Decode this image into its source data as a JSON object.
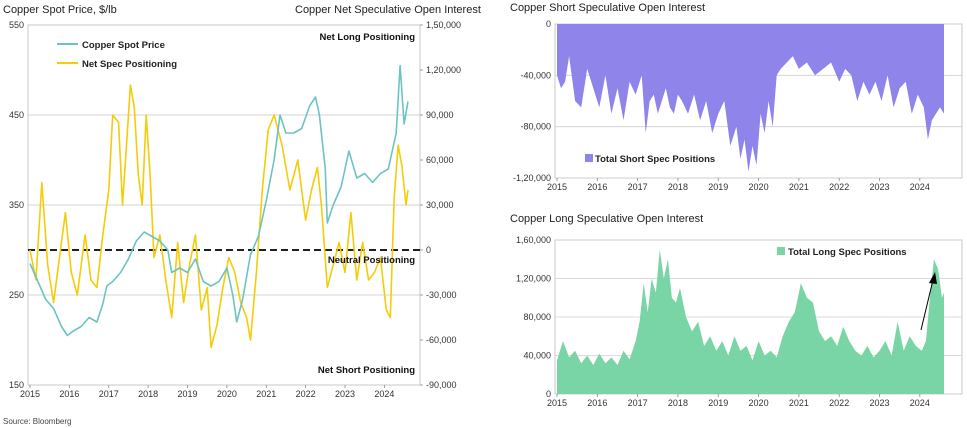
{
  "source": "Source: Bloomberg",
  "colors": {
    "copper": "#6cc4c2",
    "spec": "#f5cc0a",
    "short": "#8f84ea",
    "long": "#79d4a6"
  },
  "chart_data": [
    {
      "type": "line",
      "title_left": "Copper Spot Price, $/lb",
      "title_right": "Copper Net Speculative Open Interest",
      "xlabels": [
        "2015",
        "2016",
        "2017",
        "2018",
        "2019",
        "2020",
        "2021",
        "2022",
        "2023",
        "2024"
      ],
      "x_range": [
        2015,
        2024.6
      ],
      "y_left": {
        "ticks": [
          "550",
          "450",
          "350",
          "250",
          "150"
        ],
        "range": [
          150,
          550
        ]
      },
      "y_right": {
        "ticks": [
          "1,50,000",
          "1,20,000",
          "90,000",
          "60,000",
          "30,000",
          "0",
          "-30,000",
          "-60,000",
          "-90,000"
        ],
        "range": [
          -90000,
          150000
        ]
      },
      "grid": true,
      "legend": [
        "Copper Spot Price",
        "Net Spec Positioning"
      ],
      "annotations": {
        "long": "Net Long Positioning",
        "neutral": "Neutral Positioning",
        "short": "Net Short Positioning"
      },
      "series": [
        {
          "name": "Copper Spot Price",
          "axis": "left",
          "x": [
            2015,
            2015.2,
            2015.4,
            2015.6,
            2015.8,
            2015.95,
            2016.1,
            2016.3,
            2016.5,
            2016.7,
            2016.85,
            2016.95,
            2017.1,
            2017.3,
            2017.5,
            2017.7,
            2017.9,
            2018.1,
            2018.3,
            2018.5,
            2018.6,
            2018.8,
            2019.0,
            2019.2,
            2019.4,
            2019.6,
            2019.8,
            2020.0,
            2020.15,
            2020.25,
            2020.4,
            2020.6,
            2020.8,
            2021.0,
            2021.2,
            2021.35,
            2021.5,
            2021.7,
            2021.9,
            2022.1,
            2022.25,
            2022.35,
            2022.5,
            2022.55,
            2022.7,
            2022.9,
            2023.1,
            2023.3,
            2023.5,
            2023.7,
            2023.9,
            2024.1,
            2024.3,
            2024.4,
            2024.5,
            2024.6
          ],
          "y": [
            285,
            265,
            245,
            235,
            215,
            205,
            210,
            215,
            225,
            220,
            240,
            260,
            265,
            275,
            290,
            310,
            320,
            315,
            310,
            300,
            275,
            280,
            275,
            290,
            265,
            260,
            265,
            280,
            250,
            220,
            245,
            295,
            315,
            355,
            400,
            450,
            430,
            430,
            435,
            460,
            470,
            450,
            390,
            330,
            350,
            370,
            410,
            380,
            385,
            375,
            385,
            390,
            430,
            505,
            440,
            465
          ]
        },
        {
          "name": "Net Spec Positioning",
          "axis": "right",
          "x": [
            2015,
            2015.15,
            2015.3,
            2015.45,
            2015.6,
            2015.75,
            2015.9,
            2016.05,
            2016.2,
            2016.4,
            2016.55,
            2016.7,
            2016.85,
            2017.0,
            2017.1,
            2017.25,
            2017.35,
            2017.45,
            2017.55,
            2017.65,
            2017.75,
            2017.85,
            2017.95,
            2018.05,
            2018.15,
            2018.3,
            2018.45,
            2018.6,
            2018.75,
            2018.9,
            2019.05,
            2019.2,
            2019.35,
            2019.5,
            2019.6,
            2019.75,
            2019.9,
            2020.05,
            2020.2,
            2020.35,
            2020.5,
            2020.6,
            2020.75,
            2020.9,
            2021.05,
            2021.2,
            2021.4,
            2021.6,
            2021.8,
            2022.0,
            2022.15,
            2022.3,
            2022.4,
            2022.55,
            2022.7,
            2022.85,
            2023.0,
            2023.15,
            2023.3,
            2023.45,
            2023.6,
            2023.75,
            2023.9,
            2024.05,
            2024.15,
            2024.25,
            2024.35,
            2024.45,
            2024.55,
            2024.6
          ],
          "y": [
            0,
            -20000,
            45000,
            -10000,
            -35000,
            -5000,
            25000,
            -15000,
            -30000,
            10000,
            -20000,
            -25000,
            10000,
            40000,
            90000,
            85000,
            30000,
            70000,
            110000,
            95000,
            50000,
            30000,
            90000,
            50000,
            -5000,
            10000,
            -20000,
            -45000,
            5000,
            -35000,
            -10000,
            10000,
            -40000,
            -25000,
            -65000,
            -50000,
            -25000,
            -5000,
            -15000,
            -35000,
            -45000,
            -60000,
            -15000,
            40000,
            80000,
            90000,
            70000,
            40000,
            60000,
            20000,
            40000,
            55000,
            30000,
            -25000,
            -10000,
            5000,
            -15000,
            25000,
            -20000,
            5000,
            -20000,
            -15000,
            -5000,
            -40000,
            -45000,
            35000,
            70000,
            55000,
            30000,
            40000
          ]
        }
      ]
    },
    {
      "type": "area",
      "title": "Copper Short Speculative Open Interest",
      "xlabels": [
        "2015",
        "2016",
        "2017",
        "2018",
        "2019",
        "2020",
        "2021",
        "2022",
        "2023",
        "2024"
      ],
      "x_range": [
        2015,
        2024.6
      ],
      "y": {
        "ticks": [
          "0",
          "-40,000",
          "-80,000",
          "-1,20,000"
        ],
        "range": [
          -120000,
          0
        ]
      },
      "grid": true,
      "legend": [
        "Total Short Spec Positions"
      ],
      "series": [
        {
          "name": "Total Short Spec Positions",
          "x": [
            2015,
            2015.1,
            2015.2,
            2015.3,
            2015.45,
            2015.6,
            2015.75,
            2015.9,
            2016.05,
            2016.2,
            2016.35,
            2016.5,
            2016.65,
            2016.8,
            2016.95,
            2017.1,
            2017.2,
            2017.3,
            2017.4,
            2017.5,
            2017.6,
            2017.7,
            2017.8,
            2017.9,
            2018.0,
            2018.1,
            2018.25,
            2018.4,
            2018.55,
            2018.7,
            2018.85,
            2019.0,
            2019.15,
            2019.3,
            2019.45,
            2019.55,
            2019.65,
            2019.75,
            2019.85,
            2019.95,
            2020.05,
            2020.15,
            2020.25,
            2020.35,
            2020.45,
            2020.55,
            2020.7,
            2020.85,
            2021.0,
            2021.2,
            2021.4,
            2021.6,
            2021.8,
            2022.0,
            2022.15,
            2022.3,
            2022.45,
            2022.6,
            2022.75,
            2022.9,
            2023.05,
            2023.2,
            2023.35,
            2023.5,
            2023.65,
            2023.8,
            2023.95,
            2024.1,
            2024.2,
            2024.3,
            2024.4,
            2024.5,
            2024.6
          ],
          "y": [
            -40000,
            -50000,
            -45000,
            -25000,
            -60000,
            -65000,
            -35000,
            -50000,
            -65000,
            -40000,
            -70000,
            -50000,
            -75000,
            -45000,
            -55000,
            -40000,
            -85000,
            -60000,
            -55000,
            -70000,
            -60000,
            -50000,
            -65000,
            -70000,
            -55000,
            -60000,
            -70000,
            -55000,
            -75000,
            -60000,
            -85000,
            -70000,
            -60000,
            -95000,
            -80000,
            -105000,
            -90000,
            -115000,
            -95000,
            -110000,
            -70000,
            -85000,
            -60000,
            -80000,
            -40000,
            -35000,
            -30000,
            -25000,
            -35000,
            -30000,
            -40000,
            -35000,
            -30000,
            -45000,
            -35000,
            -40000,
            -60000,
            -45000,
            -55000,
            -45000,
            -60000,
            -40000,
            -65000,
            -50000,
            -45000,
            -70000,
            -55000,
            -65000,
            -90000,
            -75000,
            -70000,
            -65000,
            -70000
          ]
        }
      ]
    },
    {
      "type": "area",
      "title": "Copper Long Speculative Open Interest",
      "xlabels": [
        "2015",
        "2016",
        "2017",
        "2018",
        "2019",
        "2020",
        "2021",
        "2022",
        "2023",
        "2024"
      ],
      "x_range": [
        2015,
        2024.6
      ],
      "y": {
        "ticks": [
          "1,60,000",
          "1,20,000",
          "80,000",
          "40,000",
          "0"
        ],
        "range": [
          0,
          160000
        ]
      },
      "grid": true,
      "legend": [
        "Total Long Spec Positions"
      ],
      "series": [
        {
          "name": "Total Long Spec Positions",
          "x": [
            2015,
            2015.15,
            2015.3,
            2015.45,
            2015.6,
            2015.75,
            2015.9,
            2016.05,
            2016.2,
            2016.35,
            2016.5,
            2016.65,
            2016.8,
            2016.95,
            2017.05,
            2017.15,
            2017.25,
            2017.35,
            2017.45,
            2017.55,
            2017.65,
            2017.75,
            2017.85,
            2017.95,
            2018.05,
            2018.2,
            2018.35,
            2018.5,
            2018.65,
            2018.8,
            2018.95,
            2019.1,
            2019.25,
            2019.4,
            2019.55,
            2019.7,
            2019.85,
            2020.0,
            2020.15,
            2020.3,
            2020.45,
            2020.6,
            2020.75,
            2020.9,
            2021.05,
            2021.2,
            2021.35,
            2021.5,
            2021.65,
            2021.8,
            2021.95,
            2022.1,
            2022.25,
            2022.4,
            2022.55,
            2022.7,
            2022.85,
            2023.0,
            2023.15,
            2023.3,
            2023.45,
            2023.6,
            2023.75,
            2023.9,
            2024.05,
            2024.15,
            2024.25,
            2024.35,
            2024.45,
            2024.55,
            2024.6
          ],
          "y": [
            35000,
            55000,
            38000,
            45000,
            32000,
            40000,
            30000,
            42000,
            32000,
            38000,
            30000,
            45000,
            36000,
            55000,
            75000,
            115000,
            85000,
            120000,
            105000,
            150000,
            120000,
            140000,
            100000,
            95000,
            110000,
            80000,
            65000,
            75000,
            50000,
            60000,
            45000,
            55000,
            40000,
            60000,
            45000,
            50000,
            35000,
            55000,
            40000,
            45000,
            38000,
            60000,
            75000,
            85000,
            115000,
            100000,
            95000,
            65000,
            55000,
            60000,
            50000,
            70000,
            55000,
            45000,
            40000,
            50000,
            38000,
            45000,
            55000,
            40000,
            75000,
            45000,
            60000,
            50000,
            45000,
            55000,
            100000,
            140000,
            130000,
            100000,
            105000
          ]
        }
      ]
    }
  ]
}
